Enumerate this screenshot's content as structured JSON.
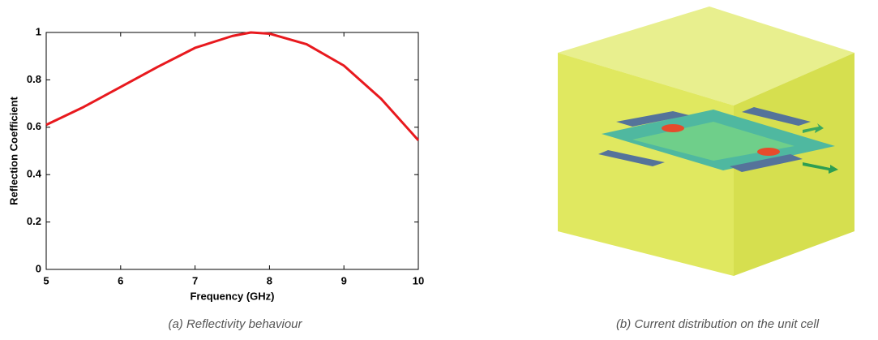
{
  "chart_data": {
    "type": "line",
    "x": [
      5,
      5.5,
      6,
      6.5,
      7,
      7.5,
      7.75,
      8,
      8.5,
      9,
      9.5,
      10
    ],
    "series": [
      {
        "color": "#e8191e",
        "values": [
          0.61,
          0.685,
          0.77,
          0.855,
          0.935,
          0.985,
          1.0,
          0.995,
          0.95,
          0.86,
          0.72,
          0.545
        ]
      }
    ],
    "xlim": [
      5,
      10
    ],
    "ylim": [
      0,
      1
    ],
    "xticks": [
      5,
      6,
      7,
      8,
      9,
      10
    ],
    "yticks": [
      0,
      0.2,
      0.4,
      0.6,
      0.8,
      1
    ],
    "x_label": "Frequency (GHz)",
    "y_label": "Reflection Coefficient",
    "caption": "(a) Reflectivity behaviour"
  },
  "figure_b": {
    "caption": "(b) Current distribution on the unit cell"
  }
}
